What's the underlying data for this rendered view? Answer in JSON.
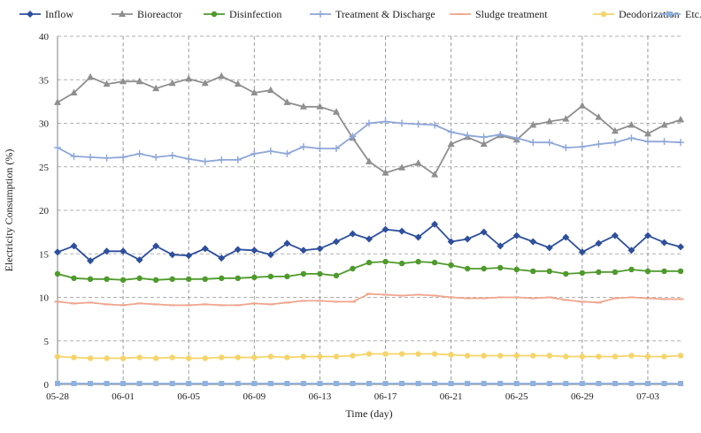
{
  "chart_data": {
    "type": "line",
    "title": "",
    "xlabel": "Time (day)",
    "ylabel": "Electricity Consumption (%)",
    "ylim": [
      0,
      40
    ],
    "y_ticks": [
      "0",
      "5",
      "10",
      "15",
      "20",
      "25",
      "30",
      "35",
      "40"
    ],
    "grid": {
      "horizontal": "dashed",
      "vertical": "dashed-at-labeled-dates"
    },
    "legend_placement": "top",
    "x": [
      "05-28",
      "05-29",
      "05-30",
      "05-31",
      "06-01",
      "06-02",
      "06-03",
      "06-04",
      "06-05",
      "06-06",
      "06-07",
      "06-08",
      "06-09",
      "06-10",
      "06-11",
      "06-12",
      "06-13",
      "06-14",
      "06-15",
      "06-16",
      "06-17",
      "06-18",
      "06-19",
      "06-20",
      "06-21",
      "06-22",
      "06-23",
      "06-24",
      "06-25",
      "06-26",
      "06-27",
      "06-28",
      "06-29",
      "06-30",
      "07-01",
      "07-02",
      "07-03",
      "07-04",
      "07-05"
    ],
    "x_tick_labels": [
      "05-28",
      "06-01",
      "06-05",
      "06-09",
      "06-13",
      "06-17",
      "06-21",
      "06-25",
      "06-29",
      "07-03"
    ],
    "series": [
      {
        "name": "Inflow",
        "color": "#2e4f9c",
        "marker": "diamond",
        "values": [
          15.2,
          15.9,
          14.2,
          15.3,
          15.3,
          14.3,
          15.9,
          14.9,
          14.8,
          15.6,
          14.5,
          15.5,
          15.4,
          14.9,
          16.2,
          15.4,
          15.6,
          16.4,
          17.3,
          16.7,
          17.8,
          17.6,
          16.9,
          18.4,
          16.4,
          16.7,
          17.5,
          15.9,
          17.1,
          16.4,
          15.7,
          16.9,
          15.2,
          16.2,
          17.1,
          15.4,
          17.1,
          16.3,
          15.8
        ]
      },
      {
        "name": "Bioreactor",
        "color": "#8f8f8f",
        "marker": "triangle",
        "values": [
          32.4,
          33.5,
          35.3,
          34.5,
          34.8,
          34.8,
          34.0,
          34.6,
          35.1,
          34.6,
          35.4,
          34.5,
          33.5,
          33.8,
          32.4,
          31.9,
          31.9,
          31.3,
          28.3,
          25.6,
          24.3,
          24.9,
          25.4,
          24.1,
          27.6,
          28.4,
          27.6,
          28.6,
          28.1,
          29.8,
          30.2,
          30.5,
          32.0,
          30.7,
          29.1,
          29.8,
          28.8,
          29.8,
          30.4
        ]
      },
      {
        "name": "Disinfection",
        "color": "#4e9a2c",
        "marker": "circle",
        "values": [
          12.7,
          12.2,
          12.1,
          12.1,
          12.0,
          12.2,
          12.0,
          12.1,
          12.1,
          12.1,
          12.2,
          12.2,
          12.3,
          12.4,
          12.4,
          12.7,
          12.7,
          12.5,
          13.3,
          14.0,
          14.1,
          13.9,
          14.1,
          14.0,
          13.7,
          13.3,
          13.3,
          13.4,
          13.2,
          13.0,
          13.0,
          12.7,
          12.8,
          12.9,
          12.9,
          13.2,
          13.0,
          13.0,
          13.0
        ]
      },
      {
        "name": "Treatment & Discharge",
        "color": "#8ea6d8",
        "marker": "plus",
        "values": [
          27.2,
          26.2,
          26.1,
          26.0,
          26.1,
          26.5,
          26.1,
          26.3,
          25.9,
          25.6,
          25.8,
          25.8,
          26.5,
          26.8,
          26.5,
          27.3,
          27.1,
          27.1,
          28.5,
          30.0,
          30.2,
          30.0,
          29.9,
          29.8,
          29.0,
          28.6,
          28.4,
          28.7,
          28.3,
          27.8,
          27.8,
          27.2,
          27.3,
          27.6,
          27.8,
          28.3,
          27.9,
          27.9,
          27.8
        ]
      },
      {
        "name": "Sludge treatment",
        "color": "#f0a48c",
        "marker": "dash",
        "values": [
          9.5,
          9.3,
          9.4,
          9.2,
          9.1,
          9.3,
          9.2,
          9.1,
          9.1,
          9.2,
          9.1,
          9.1,
          9.3,
          9.2,
          9.4,
          9.6,
          9.6,
          9.5,
          9.5,
          10.4,
          10.3,
          10.2,
          10.3,
          10.2,
          10.0,
          9.9,
          9.9,
          10.0,
          10.0,
          9.9,
          10.0,
          9.7,
          9.5,
          9.4,
          9.9,
          10.0,
          9.9,
          9.8,
          9.8
        ]
      },
      {
        "name": "Deodorization",
        "color": "#f5d46a",
        "marker": "circle",
        "values": [
          3.2,
          3.1,
          3.0,
          3.0,
          3.0,
          3.1,
          3.0,
          3.1,
          3.0,
          3.0,
          3.1,
          3.1,
          3.1,
          3.2,
          3.1,
          3.2,
          3.2,
          3.2,
          3.3,
          3.5,
          3.5,
          3.5,
          3.5,
          3.5,
          3.4,
          3.3,
          3.3,
          3.3,
          3.3,
          3.3,
          3.3,
          3.2,
          3.2,
          3.2,
          3.2,
          3.3,
          3.2,
          3.2,
          3.3
        ]
      },
      {
        "name": "Etc.",
        "color": "#8fb1de",
        "marker": "square",
        "values": [
          0.1,
          0.1,
          0.1,
          0.1,
          0.1,
          0.1,
          0.1,
          0.1,
          0.1,
          0.1,
          0.1,
          0.1,
          0.1,
          0.1,
          0.1,
          0.1,
          0.1,
          0.1,
          0.1,
          0.1,
          0.1,
          0.1,
          0.1,
          0.1,
          0.1,
          0.1,
          0.1,
          0.1,
          0.1,
          0.1,
          0.1,
          0.1,
          0.1,
          0.1,
          0.1,
          0.1,
          0.1,
          0.1,
          0.1
        ]
      }
    ]
  }
}
